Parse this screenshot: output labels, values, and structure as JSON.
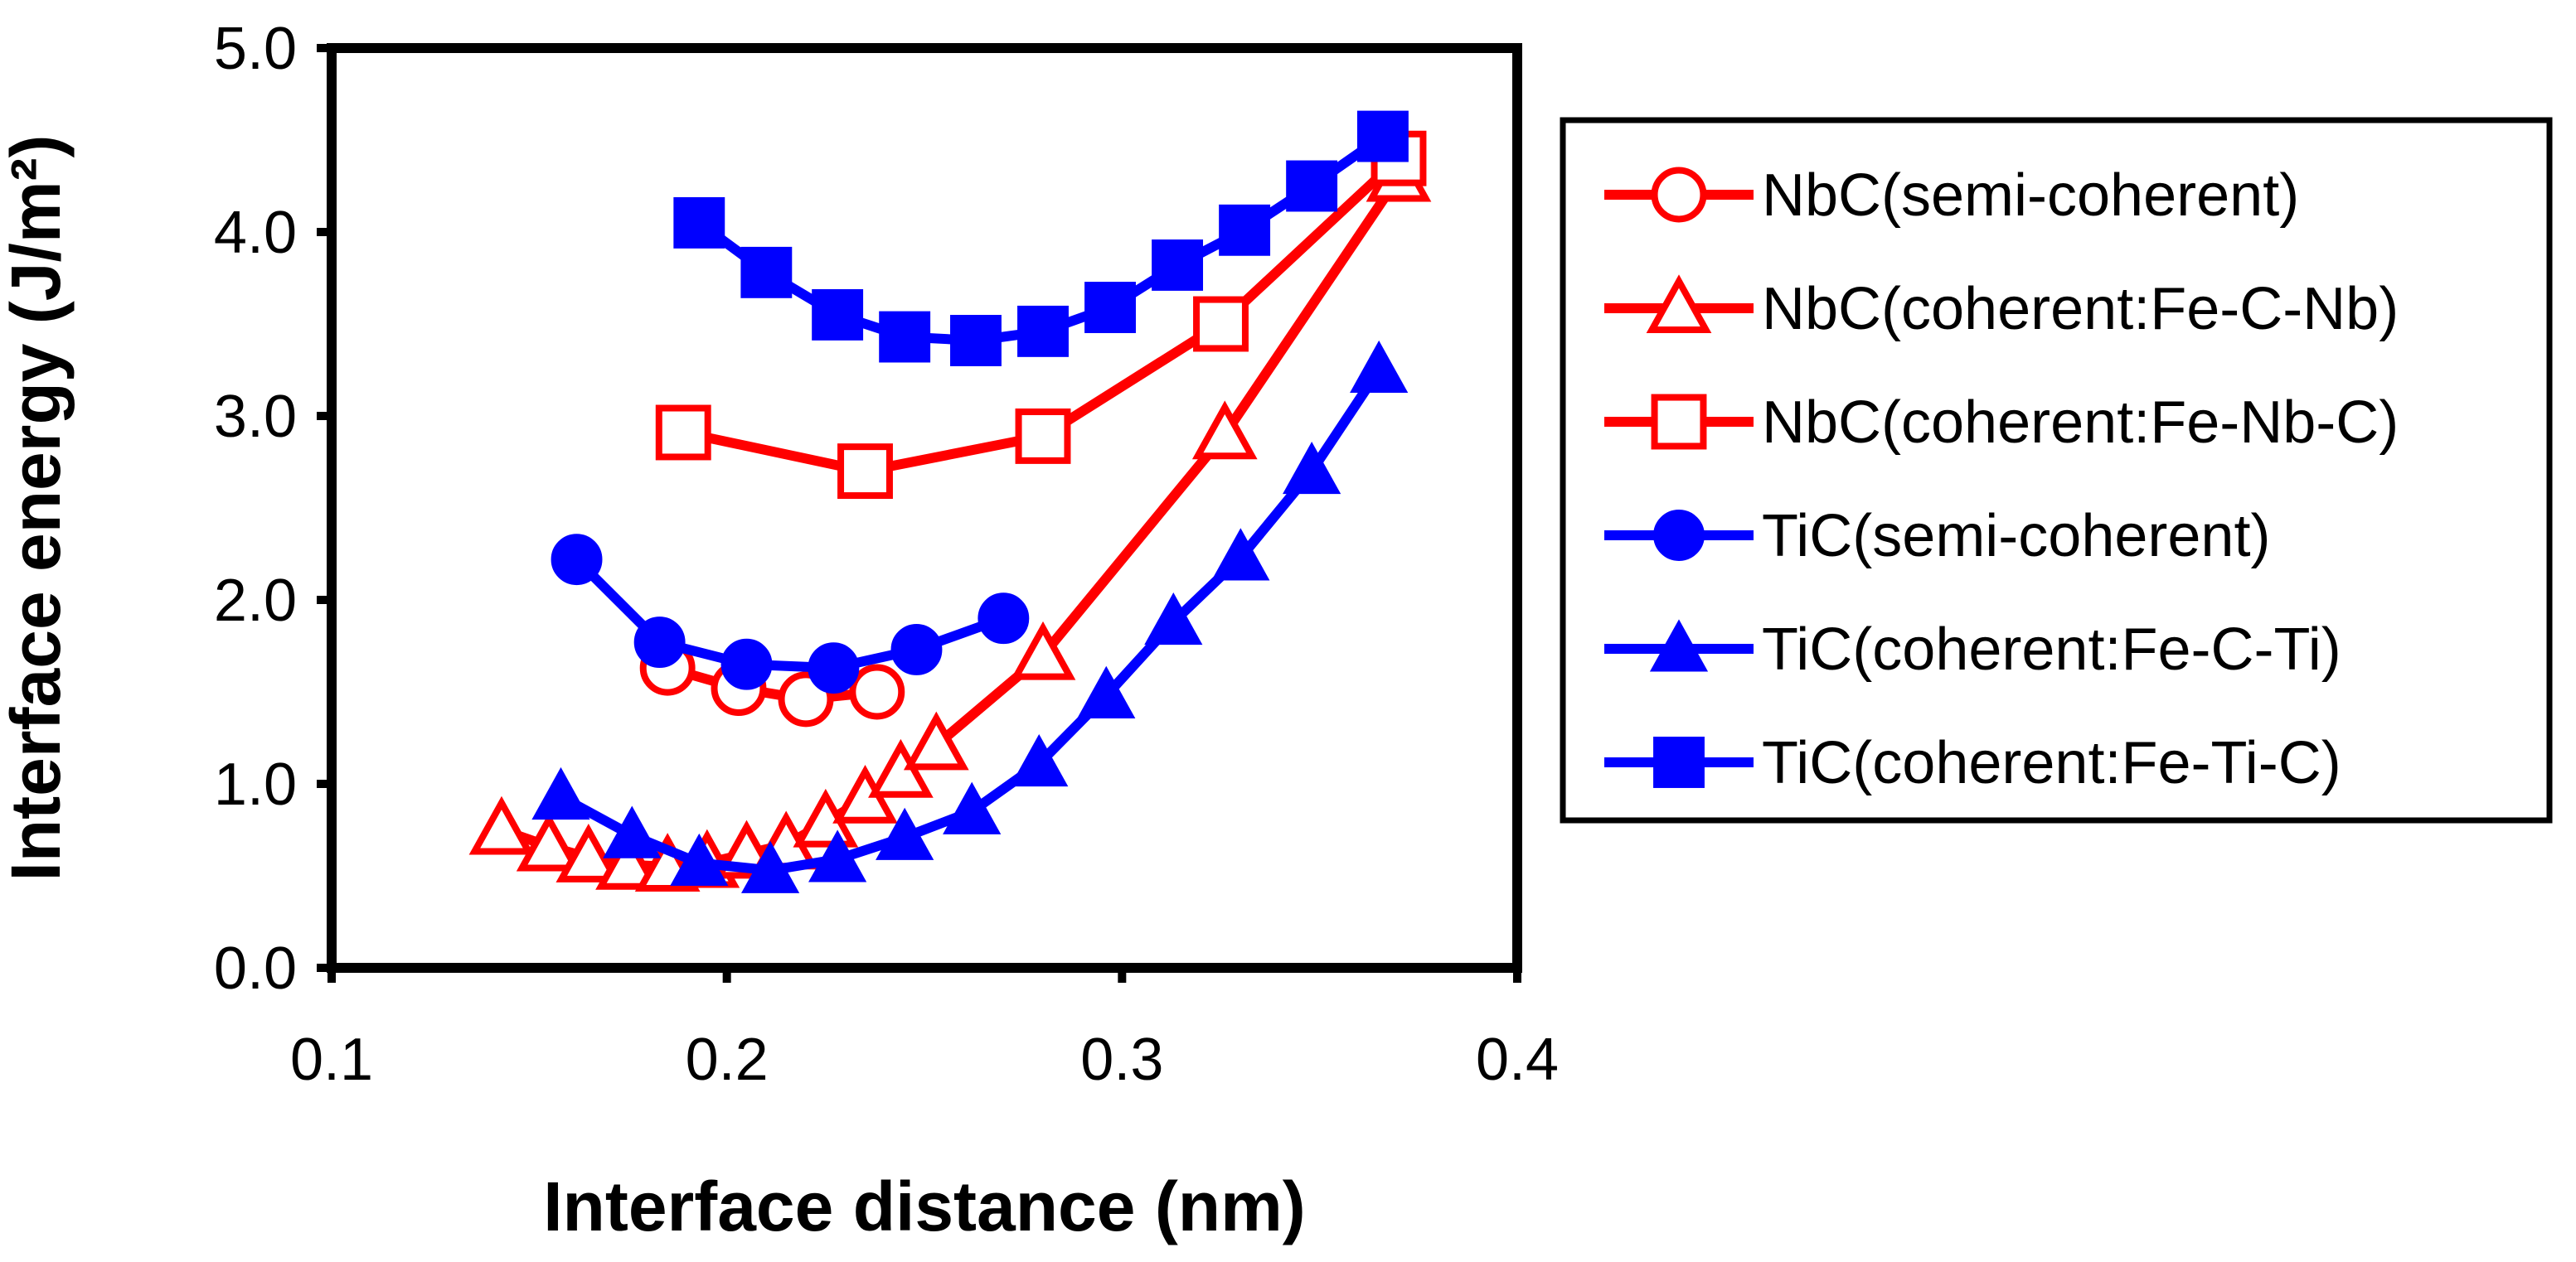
{
  "chart_data": {
    "type": "line",
    "xlabel": "Interface distance  (nm)",
    "ylabel": "Interface energy  (J/m²)",
    "xlim": [
      0.1,
      0.4
    ],
    "ylim": [
      0.0,
      5.0
    ],
    "xticks": [
      "0.1",
      "0.2",
      "0.3",
      "0.4"
    ],
    "yticks": [
      "0.0",
      "1.0",
      "2.0",
      "3.0",
      "4.0",
      "5.0"
    ],
    "grid": false,
    "legend_position": "right",
    "series": [
      {
        "name": "NbC(semi-coherent)",
        "color": "#ff0000",
        "marker": "circle-open",
        "x": [
          0.185,
          0.203,
          0.22,
          0.238
        ],
        "y": [
          1.63,
          1.52,
          1.46,
          1.5
        ]
      },
      {
        "name": "NbC(coherent:Fe-C-Nb)",
        "color": "#ff0000",
        "marker": "triangle-open",
        "x": [
          0.143,
          0.155,
          0.165,
          0.175,
          0.185,
          0.195,
          0.205,
          0.215,
          0.225,
          0.235,
          0.244,
          0.253,
          0.28,
          0.326,
          0.37
        ],
        "y": [
          0.75,
          0.66,
          0.6,
          0.56,
          0.55,
          0.57,
          0.62,
          0.67,
          0.79,
          0.92,
          1.06,
          1.21,
          1.7,
          2.9,
          4.3
        ]
      },
      {
        "name": "NbC(coherent:Fe-Nb-C)",
        "color": "#ff0000",
        "marker": "square-open",
        "x": [
          0.189,
          0.235,
          0.28,
          0.325,
          0.37
        ],
        "y": [
          2.91,
          2.7,
          2.89,
          3.5,
          4.4
        ]
      },
      {
        "name": "TiC(semi-coherent)",
        "color": "#0000ff",
        "marker": "circle-filled",
        "x": [
          0.162,
          0.183,
          0.205,
          0.227,
          0.248,
          0.27
        ],
        "y": [
          2.22,
          1.77,
          1.65,
          1.63,
          1.73,
          1.9
        ]
      },
      {
        "name": "TiC(coherent:Fe-C-Ti)",
        "color": "#0000ff",
        "marker": "triangle-filled",
        "x": [
          0.158,
          0.176,
          0.193,
          0.211,
          0.228,
          0.245,
          0.262,
          0.279,
          0.296,
          0.313,
          0.33,
          0.348,
          0.365
        ],
        "y": [
          0.93,
          0.72,
          0.57,
          0.53,
          0.59,
          0.71,
          0.85,
          1.11,
          1.48,
          1.88,
          2.23,
          2.7,
          3.25
        ]
      },
      {
        "name": "TiC(coherent:Fe-Ti-C)",
        "color": "#0000ff",
        "marker": "square-filled",
        "x": [
          0.193,
          0.21,
          0.228,
          0.245,
          0.263,
          0.28,
          0.297,
          0.314,
          0.331,
          0.348,
          0.366
        ],
        "y": [
          4.05,
          3.78,
          3.55,
          3.43,
          3.41,
          3.46,
          3.59,
          3.82,
          4.01,
          4.25,
          4.52
        ]
      }
    ]
  }
}
